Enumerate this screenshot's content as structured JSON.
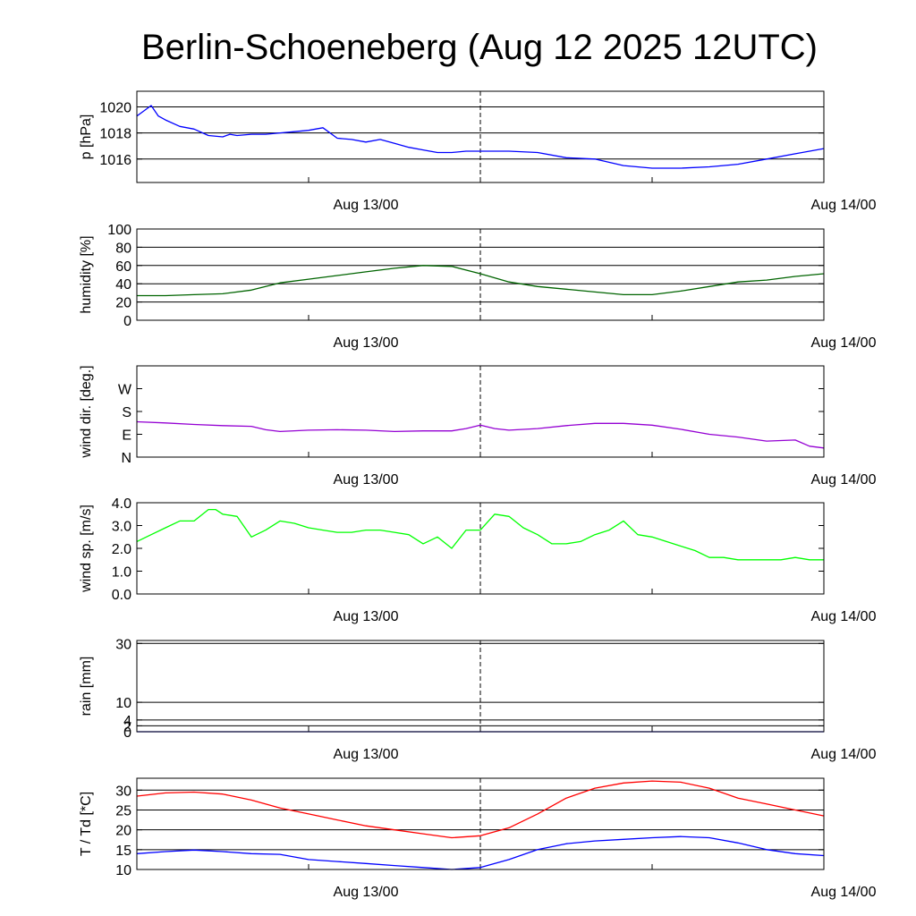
{
  "title": "Berlin-Schoeneberg (Aug 12 2025 12UTC)",
  "colors": {
    "pressure": "#0000ff",
    "humidity": "#006400",
    "wind_dir": "#9400d3",
    "wind_speed": "#00ff00",
    "rain": "#0000ff",
    "temperature": "#ff0000",
    "dewpoint": "#0000ff"
  },
  "chart_data": [
    {
      "type": "line",
      "ylabel": "p [hPa]",
      "ylim": [
        1014.2,
        1021.2
      ],
      "yticks": [
        1016,
        1018,
        1020
      ],
      "ytick_labels": [
        "1016",
        "1018",
        "1020"
      ],
      "grid": true,
      "x_tick_labels": [
        "Aug 13/00",
        "Aug 14/00"
      ],
      "series": [
        {
          "color_key": "pressure",
          "x": [
            0,
            0.5,
            1,
            1.5,
            2,
            3,
            4,
            5,
            6,
            6.5,
            7,
            8,
            9,
            10,
            11,
            12,
            13,
            14,
            15,
            16,
            17,
            18,
            19,
            20,
            21,
            22,
            23,
            24,
            26,
            28,
            30,
            32,
            34,
            36,
            38,
            40,
            42,
            44,
            46,
            48
          ],
          "values": [
            1019.3,
            1019.7,
            1020.1,
            1019.3,
            1019.0,
            1018.5,
            1018.3,
            1017.8,
            1017.7,
            1017.9,
            1017.8,
            1017.9,
            1017.9,
            1018.0,
            1018.1,
            1018.2,
            1018.4,
            1017.6,
            1017.5,
            1017.3,
            1017.5,
            1017.2,
            1016.9,
            1016.7,
            1016.5,
            1016.5,
            1016.6,
            1016.6,
            1016.6,
            1016.5,
            1016.1,
            1016.0,
            1015.5,
            1015.3,
            1015.3,
            1015.4,
            1015.6,
            1016.0,
            1016.4,
            1016.8
          ]
        }
      ]
    },
    {
      "type": "line",
      "ylabel": "humidity [%]",
      "ylim": [
        0,
        100
      ],
      "yticks": [
        0,
        20,
        40,
        60,
        80,
        100
      ],
      "ytick_labels": [
        "0",
        "20",
        "40",
        "60",
        "80",
        "100"
      ],
      "grid": true,
      "x_tick_labels": [
        "Aug 13/00",
        "Aug 14/00"
      ],
      "series": [
        {
          "color_key": "humidity",
          "x": [
            0,
            2,
            4,
            6,
            8,
            10,
            12,
            14,
            16,
            18,
            20,
            22,
            24,
            26,
            28,
            30,
            32,
            34,
            36,
            38,
            40,
            42,
            44,
            46,
            48
          ],
          "values": [
            27,
            27,
            28,
            29,
            33,
            41,
            45,
            49,
            53,
            57,
            60,
            59,
            51,
            42,
            37,
            34,
            31,
            28,
            28,
            32,
            37,
            42,
            44,
            48,
            51
          ]
        }
      ]
    },
    {
      "type": "line",
      "ylabel": "wind dir. [deg.]",
      "ylim": [
        0,
        400
      ],
      "yticks": [
        0,
        100,
        200,
        300
      ],
      "ytick_labels": [
        "N",
        "E",
        "S",
        "W"
      ],
      "grid": false,
      "x_tick_labels": [
        "Aug 13/00",
        "Aug 14/00"
      ],
      "series": [
        {
          "color_key": "wind_dir",
          "x": [
            0,
            2,
            4,
            6,
            8,
            9,
            10,
            12,
            14,
            16,
            18,
            20,
            22,
            23,
            24,
            25,
            26,
            28,
            30,
            32,
            34,
            36,
            38,
            40,
            42,
            44,
            46,
            47,
            48
          ],
          "values": [
            155,
            150,
            143,
            138,
            135,
            120,
            112,
            118,
            120,
            118,
            112,
            115,
            115,
            125,
            140,
            125,
            118,
            125,
            138,
            148,
            148,
            140,
            122,
            100,
            88,
            70,
            75,
            48,
            40
          ]
        }
      ]
    },
    {
      "type": "line",
      "ylabel": "wind sp. [m/s]",
      "ylim": [
        0,
        4.0
      ],
      "yticks": [
        0,
        1,
        2,
        3,
        4
      ],
      "ytick_labels": [
        "0.0",
        "1.0",
        "2.0",
        "3.0",
        "4.0"
      ],
      "grid": false,
      "x_tick_labels": [
        "Aug 13/00",
        "Aug 14/00"
      ],
      "series": [
        {
          "color_key": "wind_speed",
          "x": [
            0,
            1,
            2,
            3,
            4,
            5,
            5.5,
            6,
            7,
            8,
            9,
            10,
            11,
            12,
            13,
            14,
            15,
            16,
            17,
            18,
            19,
            20,
            21,
            22,
            23,
            24,
            25,
            26,
            27,
            28,
            29,
            30,
            31,
            32,
            33,
            34,
            35,
            36,
            37,
            38,
            39,
            40,
            41,
            42,
            43,
            44,
            45,
            46,
            47,
            48
          ],
          "values": [
            2.3,
            2.6,
            2.9,
            3.2,
            3.2,
            3.7,
            3.7,
            3.5,
            3.4,
            2.5,
            2.8,
            3.2,
            3.1,
            2.9,
            2.8,
            2.7,
            2.7,
            2.8,
            2.8,
            2.7,
            2.6,
            2.2,
            2.5,
            2.0,
            2.8,
            2.8,
            3.5,
            3.4,
            2.9,
            2.6,
            2.2,
            2.2,
            2.3,
            2.6,
            2.8,
            3.2,
            2.6,
            2.5,
            2.3,
            2.1,
            1.9,
            1.6,
            1.6,
            1.5,
            1.5,
            1.5,
            1.5,
            1.6,
            1.5,
            1.5
          ]
        }
      ]
    },
    {
      "type": "line",
      "ylabel": "rain [mm]",
      "ylim": [
        0,
        31
      ],
      "yticks": [
        0,
        2,
        4,
        10,
        30
      ],
      "ytick_labels": [
        "0",
        "2",
        "4",
        "10",
        "30"
      ],
      "grid": true,
      "x_tick_labels": [
        "Aug 13/00",
        "Aug 14/00"
      ],
      "series": [
        {
          "color_key": "rain",
          "x": [
            0,
            48
          ],
          "values": [
            0,
            0
          ]
        }
      ]
    },
    {
      "type": "line",
      "ylabel": "T / Td [*C]",
      "ylim": [
        10,
        33
      ],
      "yticks": [
        10,
        15,
        20,
        25,
        30
      ],
      "ytick_labels": [
        "10",
        "15",
        "20",
        "25",
        "30"
      ],
      "grid": true,
      "x_tick_labels": [
        "Aug 13/00",
        "Aug 14/00"
      ],
      "series": [
        {
          "color_key": "temperature",
          "x": [
            0,
            2,
            4,
            6,
            8,
            10,
            12,
            14,
            16,
            18,
            20,
            22,
            24,
            26,
            28,
            30,
            32,
            34,
            36,
            38,
            40,
            42,
            44,
            46,
            48
          ],
          "values": [
            28.5,
            29.3,
            29.5,
            29.0,
            27.5,
            25.5,
            24.0,
            22.5,
            21.0,
            20.0,
            19.0,
            18.0,
            18.5,
            20.5,
            24.0,
            28.0,
            30.5,
            31.8,
            32.3,
            32.0,
            30.5,
            28.0,
            26.5,
            25.0,
            23.5
          ]
        },
        {
          "color_key": "dewpoint",
          "x": [
            0,
            2,
            4,
            6,
            8,
            10,
            12,
            14,
            16,
            18,
            20,
            22,
            24,
            26,
            28,
            30,
            32,
            34,
            36,
            38,
            40,
            42,
            44,
            46,
            48
          ],
          "values": [
            14.0,
            14.5,
            14.9,
            14.5,
            14.0,
            13.8,
            12.5,
            12.0,
            11.5,
            11.0,
            10.5,
            10.0,
            10.5,
            12.5,
            15.0,
            16.5,
            17.2,
            17.6,
            18.0,
            18.3,
            18.0,
            16.7,
            15.0,
            14.0,
            13.5
          ]
        }
      ]
    }
  ]
}
